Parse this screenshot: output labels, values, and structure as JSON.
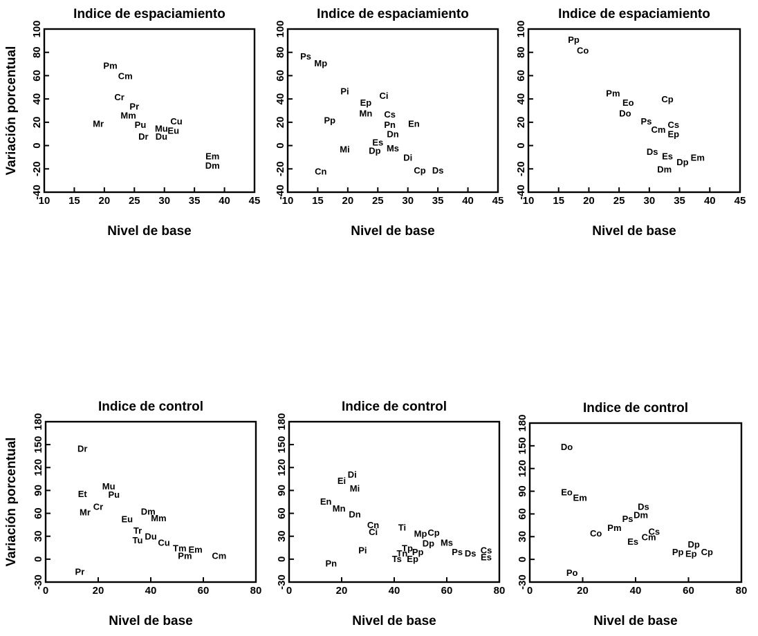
{
  "chart_data": [
    {
      "type": "scatter",
      "title": "Indice de espaciamiento",
      "xlabel": "Nivel de base",
      "ylabel": "Variación porcentual",
      "xlim": [
        10,
        45
      ],
      "ylim": [
        -40,
        100
      ],
      "xticks": [
        10,
        15,
        20,
        25,
        30,
        35,
        40,
        45
      ],
      "yticks": [
        -40,
        -20,
        0,
        20,
        40,
        60,
        80,
        100
      ],
      "points": [
        {
          "label": "Pm",
          "x": 21,
          "y": 69
        },
        {
          "label": "Cm",
          "x": 23.5,
          "y": 60
        },
        {
          "label": "Cr",
          "x": 22.5,
          "y": 42
        },
        {
          "label": "Pr",
          "x": 25,
          "y": 34
        },
        {
          "label": "Mm",
          "x": 24,
          "y": 26
        },
        {
          "label": "Mr",
          "x": 19,
          "y": 19
        },
        {
          "label": "Pu",
          "x": 26,
          "y": 18
        },
        {
          "label": "Dr",
          "x": 26.5,
          "y": 8
        },
        {
          "label": "Mu",
          "x": 29.5,
          "y": 15
        },
        {
          "label": "Cu",
          "x": 32,
          "y": 21
        },
        {
          "label": "Eu",
          "x": 31.5,
          "y": 13
        },
        {
          "label": "Du",
          "x": 29.5,
          "y": 8
        },
        {
          "label": "Em",
          "x": 38,
          "y": -9
        },
        {
          "label": "Dm",
          "x": 38,
          "y": -17
        }
      ]
    },
    {
      "type": "scatter",
      "title": "Indice de espaciamiento",
      "xlabel": "Nivel de base",
      "ylabel": "",
      "xlim": [
        10,
        45
      ],
      "ylim": [
        -40,
        100
      ],
      "xticks": [
        10,
        15,
        20,
        25,
        30,
        35,
        40,
        45
      ],
      "yticks": [
        -40,
        -20,
        0,
        20,
        40,
        60,
        80,
        100
      ],
      "points": [
        {
          "label": "Ps",
          "x": 13,
          "y": 77
        },
        {
          "label": "Mp",
          "x": 15.5,
          "y": 71
        },
        {
          "label": "Pi",
          "x": 19.5,
          "y": 47
        },
        {
          "label": "Ci",
          "x": 26,
          "y": 43
        },
        {
          "label": "Ep",
          "x": 23,
          "y": 37
        },
        {
          "label": "Mn",
          "x": 23,
          "y": 28
        },
        {
          "label": "Cs",
          "x": 27,
          "y": 27
        },
        {
          "label": "Pp",
          "x": 17,
          "y": 22
        },
        {
          "label": "Pn",
          "x": 27,
          "y": 18
        },
        {
          "label": "En",
          "x": 31,
          "y": 19
        },
        {
          "label": "Dn",
          "x": 27.5,
          "y": 10
        },
        {
          "label": "Es",
          "x": 25,
          "y": 3
        },
        {
          "label": "Mi",
          "x": 19.5,
          "y": -3
        },
        {
          "label": "Ms",
          "x": 27.5,
          "y": -2
        },
        {
          "label": "Dp",
          "x": 24.5,
          "y": -4
        },
        {
          "label": "Di",
          "x": 30,
          "y": -10
        },
        {
          "label": "Cn",
          "x": 15.5,
          "y": -22
        },
        {
          "label": "Cp",
          "x": 32,
          "y": -21
        },
        {
          "label": "Ds",
          "x": 35,
          "y": -21
        }
      ]
    },
    {
      "type": "scatter",
      "title": "Indice de espaciamiento",
      "xlabel": "Nivel de base",
      "ylabel": "",
      "xlim": [
        10,
        45
      ],
      "ylim": [
        -40,
        100
      ],
      "xticks": [
        10,
        15,
        20,
        25,
        30,
        35,
        40,
        45
      ],
      "yticks": [
        -40,
        -20,
        0,
        20,
        40,
        60,
        80,
        100
      ],
      "points": [
        {
          "label": "Pp",
          "x": 17.5,
          "y": 91
        },
        {
          "label": "Co",
          "x": 19,
          "y": 82
        },
        {
          "label": "Pm",
          "x": 24,
          "y": 45
        },
        {
          "label": "Cp",
          "x": 33,
          "y": 40
        },
        {
          "label": "Eo",
          "x": 26.5,
          "y": 37
        },
        {
          "label": "Do",
          "x": 26,
          "y": 28
        },
        {
          "label": "Ps",
          "x": 29.5,
          "y": 21
        },
        {
          "label": "Cs",
          "x": 34,
          "y": 18
        },
        {
          "label": "Cm",
          "x": 31.5,
          "y": 14
        },
        {
          "label": "Ep",
          "x": 34,
          "y": 10
        },
        {
          "label": "Ds",
          "x": 30.5,
          "y": -5
        },
        {
          "label": "Es",
          "x": 33,
          "y": -9
        },
        {
          "label": "Em",
          "x": 38,
          "y": -10
        },
        {
          "label": "Dp",
          "x": 35.5,
          "y": -14
        },
        {
          "label": "Dm",
          "x": 32.5,
          "y": -20
        }
      ]
    },
    {
      "type": "scatter",
      "title": "Indice de control",
      "xlabel": "Nivel de base",
      "ylabel": "Variación porcentual",
      "xlim": [
        0,
        80
      ],
      "ylim": [
        -30,
        180
      ],
      "xticks": [
        0,
        20,
        40,
        60,
        80
      ],
      "yticks": [
        -30,
        0,
        30,
        60,
        90,
        120,
        150,
        180
      ],
      "points": [
        {
          "label": "Dr",
          "x": 14,
          "y": 145
        },
        {
          "label": "Mu",
          "x": 24,
          "y": 96
        },
        {
          "label": "Pu",
          "x": 26,
          "y": 85
        },
        {
          "label": "Et",
          "x": 14,
          "y": 86
        },
        {
          "label": "Cr",
          "x": 20,
          "y": 69
        },
        {
          "label": "Mr",
          "x": 15,
          "y": 62
        },
        {
          "label": "Dm",
          "x": 39,
          "y": 63
        },
        {
          "label": "Mm",
          "x": 43,
          "y": 54
        },
        {
          "label": "Eu",
          "x": 31,
          "y": 53
        },
        {
          "label": "Tr",
          "x": 35,
          "y": 38
        },
        {
          "label": "Du",
          "x": 40,
          "y": 30
        },
        {
          "label": "Tu",
          "x": 35,
          "y": 25
        },
        {
          "label": "Cu",
          "x": 45,
          "y": 22
        },
        {
          "label": "Tm",
          "x": 51,
          "y": 15
        },
        {
          "label": "Em",
          "x": 57,
          "y": 13
        },
        {
          "label": "Pm",
          "x": 53,
          "y": 5
        },
        {
          "label": "Cm",
          "x": 66,
          "y": 5
        },
        {
          "label": "Pr",
          "x": 13,
          "y": -16
        }
      ]
    },
    {
      "type": "scatter",
      "title": "Indice de control",
      "xlabel": "Nivel de base",
      "ylabel": "",
      "xlim": [
        0,
        80
      ],
      "ylim": [
        -30,
        180
      ],
      "xticks": [
        0,
        20,
        40,
        60,
        80
      ],
      "yticks": [
        -30,
        0,
        30,
        60,
        90,
        120,
        150,
        180
      ],
      "points": [
        {
          "label": "Di",
          "x": 24,
          "y": 111
        },
        {
          "label": "Ei",
          "x": 20,
          "y": 103
        },
        {
          "label": "Mi",
          "x": 25,
          "y": 93
        },
        {
          "label": "En",
          "x": 14,
          "y": 76
        },
        {
          "label": "Mn",
          "x": 19,
          "y": 67
        },
        {
          "label": "Dn",
          "x": 25,
          "y": 59
        },
        {
          "label": "Cn",
          "x": 32,
          "y": 45
        },
        {
          "label": "Ci",
          "x": 32,
          "y": 36
        },
        {
          "label": "Ti",
          "x": 43,
          "y": 42
        },
        {
          "label": "Mp",
          "x": 50,
          "y": 34
        },
        {
          "label": "Cp",
          "x": 55,
          "y": 35
        },
        {
          "label": "Ms",
          "x": 60,
          "y": 22
        },
        {
          "label": "Dp",
          "x": 53,
          "y": 21
        },
        {
          "label": "Tp",
          "x": 45,
          "y": 15
        },
        {
          "label": "Pp",
          "x": 49,
          "y": 10
        },
        {
          "label": "Tn",
          "x": 43,
          "y": 8
        },
        {
          "label": "Ps",
          "x": 64,
          "y": 10
        },
        {
          "label": "Ds",
          "x": 69,
          "y": 8
        },
        {
          "label": "Cs",
          "x": 75,
          "y": 12
        },
        {
          "label": "Es",
          "x": 75,
          "y": 3
        },
        {
          "label": "Pi",
          "x": 28,
          "y": 12
        },
        {
          "label": "Ts",
          "x": 41,
          "y": 1
        },
        {
          "label": "Ep",
          "x": 47,
          "y": 1
        },
        {
          "label": "Pn",
          "x": 16,
          "y": -5
        }
      ]
    },
    {
      "type": "scatter",
      "title": "Indice de control",
      "xlabel": "Nivel de base",
      "ylabel": "",
      "xlim": [
        0,
        80
      ],
      "ylim": [
        -30,
        180
      ],
      "xticks": [
        0,
        20,
        40,
        60,
        80
      ],
      "yticks": [
        -30,
        0,
        30,
        60,
        90,
        120,
        150,
        180
      ],
      "points": [
        {
          "label": "Do",
          "x": 14,
          "y": 149
        },
        {
          "label": "Eo",
          "x": 14,
          "y": 89
        },
        {
          "label": "Em",
          "x": 19,
          "y": 82
        },
        {
          "label": "Ds",
          "x": 43,
          "y": 70
        },
        {
          "label": "Dm",
          "x": 42,
          "y": 59
        },
        {
          "label": "Ps",
          "x": 37,
          "y": 54
        },
        {
          "label": "Pm",
          "x": 32,
          "y": 42
        },
        {
          "label": "Co",
          "x": 25,
          "y": 35
        },
        {
          "label": "Cs",
          "x": 47,
          "y": 37
        },
        {
          "label": "Cm",
          "x": 45,
          "y": 30
        },
        {
          "label": "Es",
          "x": 39,
          "y": 24
        },
        {
          "label": "Dp",
          "x": 62,
          "y": 20
        },
        {
          "label": "Pp",
          "x": 56,
          "y": 10
        },
        {
          "label": "Ep",
          "x": 61,
          "y": 8
        },
        {
          "label": "Cp",
          "x": 67,
          "y": 10
        },
        {
          "label": "Po",
          "x": 16,
          "y": -17
        }
      ]
    }
  ]
}
